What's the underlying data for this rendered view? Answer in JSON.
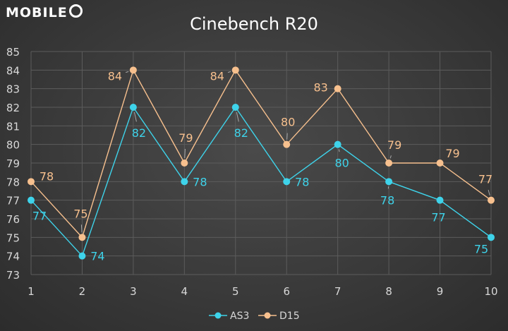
{
  "logo": {
    "text": "MOBILE"
  },
  "chart_data": {
    "type": "line",
    "title": "Cinebench R20",
    "categories": [
      "1",
      "2",
      "3",
      "4",
      "5",
      "6",
      "7",
      "8",
      "9",
      "10"
    ],
    "ylim": [
      73,
      85
    ],
    "yticks": [
      "73",
      "74",
      "75",
      "76",
      "77",
      "78",
      "79",
      "80",
      "81",
      "82",
      "83",
      "84",
      "85"
    ],
    "grid": true,
    "legend": "bottom",
    "series": [
      {
        "name": "AS3",
        "color": "#3ed3ea",
        "values": [
          77,
          74,
          82,
          78,
          82,
          78,
          80,
          78,
          77,
          75
        ]
      },
      {
        "name": "D15",
        "color": "#f7c08e",
        "values": [
          78,
          75,
          84,
          79,
          84,
          80,
          83,
          79,
          79,
          77
        ]
      }
    ]
  }
}
